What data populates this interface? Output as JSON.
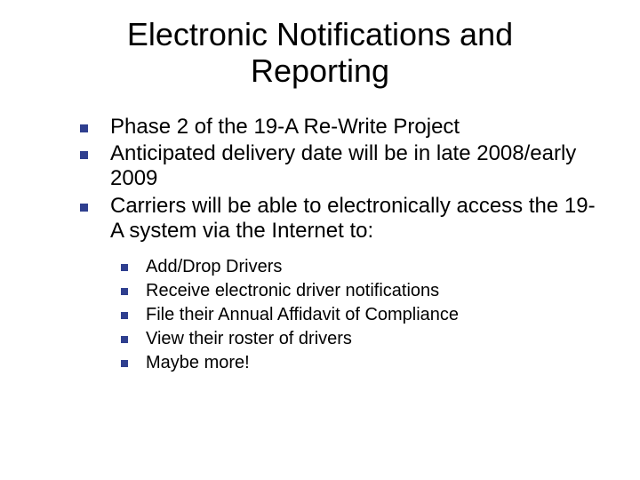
{
  "title": "Electronic Notifications and Reporting",
  "bullets": [
    {
      "text": "Phase 2 of the 19-A Re-Write Project"
    },
    {
      "text": "Anticipated delivery date will be in late 2008/early 2009"
    },
    {
      "text": "Carriers will be able to electronically access the 19-A system via the Internet to:"
    }
  ],
  "sub_bullets": [
    {
      "text": "Add/Drop Drivers"
    },
    {
      "text": "Receive electronic driver notifications"
    },
    {
      "text": "File their Annual Affidavit of Compliance"
    },
    {
      "text": "View their roster of drivers"
    },
    {
      "text": "Maybe more!"
    }
  ],
  "style": {
    "background_color": "#ffffff",
    "text_color": "#000000",
    "bullet_color": "#2f3f8f",
    "title_fontsize": 36,
    "body_fontsize": 24,
    "sub_fontsize": 20,
    "font_family": "Verdana"
  }
}
